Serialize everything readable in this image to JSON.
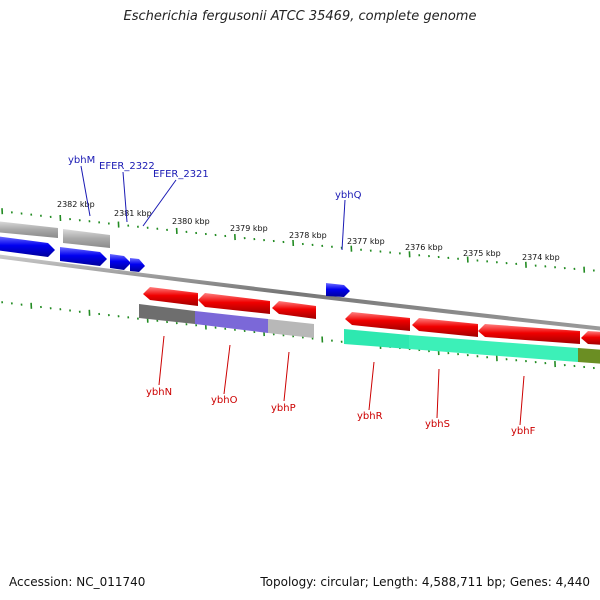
{
  "title": "Escherichia fergusonii ATCC 35469, complete genome",
  "footer": {
    "accession": "Accession: NC_011740",
    "summary": "Topology: circular; Length: 4,588,711 bp; Genes: 4,440"
  },
  "colors": {
    "forward_label": "#1a1ab4",
    "reverse_label": "#cc0000",
    "tick": "#228b22",
    "backbone": "#808080"
  },
  "scale_labels": [
    "2382 kbp",
    "2381 kbp",
    "2380 kbp",
    "2379 kbp",
    "2378 kbp",
    "2377 kbp",
    "2376 kbp",
    "2375 kbp",
    "2374 kbp"
  ],
  "genes_forward": [
    {
      "name": "",
      "color": "#0000ee"
    },
    {
      "name": "",
      "color": "#0000ee"
    },
    {
      "name": "",
      "color": "#0000ee"
    },
    {
      "name": "",
      "color": "#0000ee"
    },
    {
      "name": "",
      "color": "#0000ee"
    }
  ],
  "genes_reverse": [
    {
      "name": "",
      "color": "#ee0000"
    },
    {
      "name": "",
      "color": "#ee0000"
    },
    {
      "name": "",
      "color": "#ee0000"
    },
    {
      "name": "",
      "color": "#ee0000"
    },
    {
      "name": "",
      "color": "#ee0000"
    },
    {
      "name": "",
      "color": "#ee0000"
    },
    {
      "name": "",
      "color": "#ee0000"
    }
  ],
  "outer_feature_blocks": [
    {
      "color": "#bdbdbd"
    },
    {
      "color": "#a8a8a8"
    }
  ],
  "inner_feature_blocks": [
    {
      "color": "#6e6e6e"
    },
    {
      "color": "#7b68d8"
    },
    {
      "color": "#b8b8b8"
    },
    {
      "color": "#2ee8b0"
    },
    {
      "color": "#2ee8b0"
    },
    {
      "color": "#6b8e23"
    }
  ],
  "forward_labels": [
    "ybhM",
    "EFER_2322",
    "EFER_2321",
    "ybhQ"
  ],
  "reverse_labels": [
    "ybhN",
    "ybhO",
    "ybhP",
    "ybhR",
    "ybhS",
    "ybhF"
  ]
}
